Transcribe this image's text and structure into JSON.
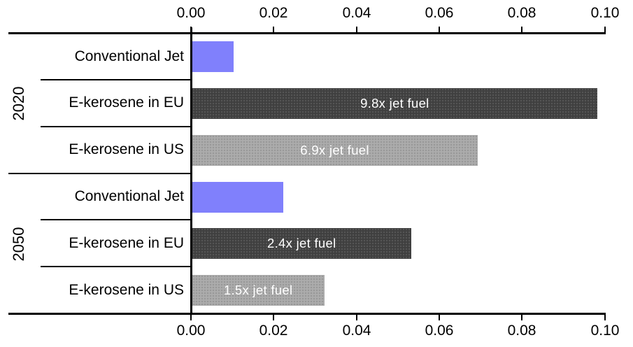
{
  "chart_data": {
    "type": "bar",
    "orientation": "horizontal",
    "title": "",
    "x_axis": {
      "min": 0,
      "max": 0.1,
      "ticks": [
        "0.00",
        "0.02",
        "0.04",
        "0.06",
        "0.08",
        "0.10"
      ],
      "tick_values": [
        0,
        0.02,
        0.04,
        0.06,
        0.08,
        0.1
      ],
      "position": "top-and-bottom",
      "grid": false
    },
    "y_axis": {
      "group_labels": [
        "2020",
        "2050"
      ],
      "category_labels": [
        "Conventional Jet",
        "E-kerosene in EU",
        "E-kerosene in US"
      ]
    },
    "groups": [
      {
        "year": "2020",
        "items": [
          {
            "label": "Conventional Jet",
            "value": 0.01,
            "series": "conventional",
            "bar_label": ""
          },
          {
            "label": "E-kerosene in EU",
            "value": 0.098,
            "series": "eu",
            "bar_label": "9.8x jet fuel"
          },
          {
            "label": "E-kerosene in US",
            "value": 0.069,
            "series": "us",
            "bar_label": "6.9x jet fuel"
          }
        ]
      },
      {
        "year": "2050",
        "items": [
          {
            "label": "Conventional Jet",
            "value": 0.022,
            "series": "conventional",
            "bar_label": ""
          },
          {
            "label": "E-kerosene in EU",
            "value": 0.053,
            "series": "eu",
            "bar_label": "2.4x jet fuel"
          },
          {
            "label": "E-kerosene in US",
            "value": 0.032,
            "series": "us",
            "bar_label": "1.5x jet fuel"
          }
        ]
      }
    ],
    "colors": {
      "conventional": "#8080FC",
      "eu": "#3F3F3F",
      "us": "#ACACAC",
      "axis": "#000000",
      "bar_label_text": "#FFFFFF"
    }
  }
}
